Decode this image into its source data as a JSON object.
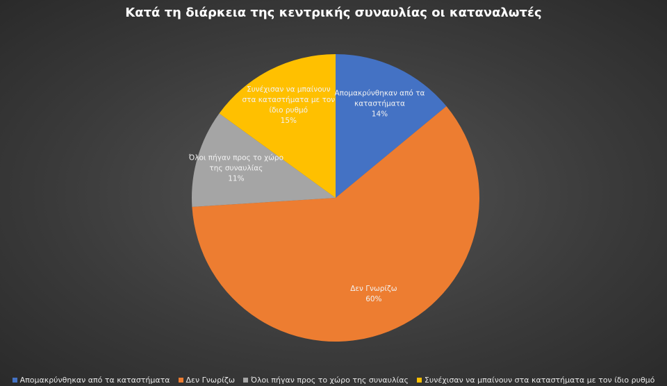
{
  "chart_data": {
    "type": "pie",
    "title": "Κατά τη διάρκεια της κεντρικής συναυλίας οι καταναλωτές",
    "categories": [
      "Απομακρύνθηκαν από τα καταστήματα",
      "Δεν Γνωρίζω",
      "Όλοι πήγαν προς το χώρο της συναυλίας",
      "Συνέχισαν να μπαίνουν στα καταστήματα με τον ίδιο ρυθμό"
    ],
    "values": [
      14,
      60,
      11,
      15
    ],
    "value_labels": [
      "14%",
      "60%",
      "11%",
      "15%"
    ],
    "colors": [
      "#4472c4",
      "#ed7d31",
      "#a5a5a5",
      "#ffc000"
    ],
    "legend": "bottom"
  }
}
